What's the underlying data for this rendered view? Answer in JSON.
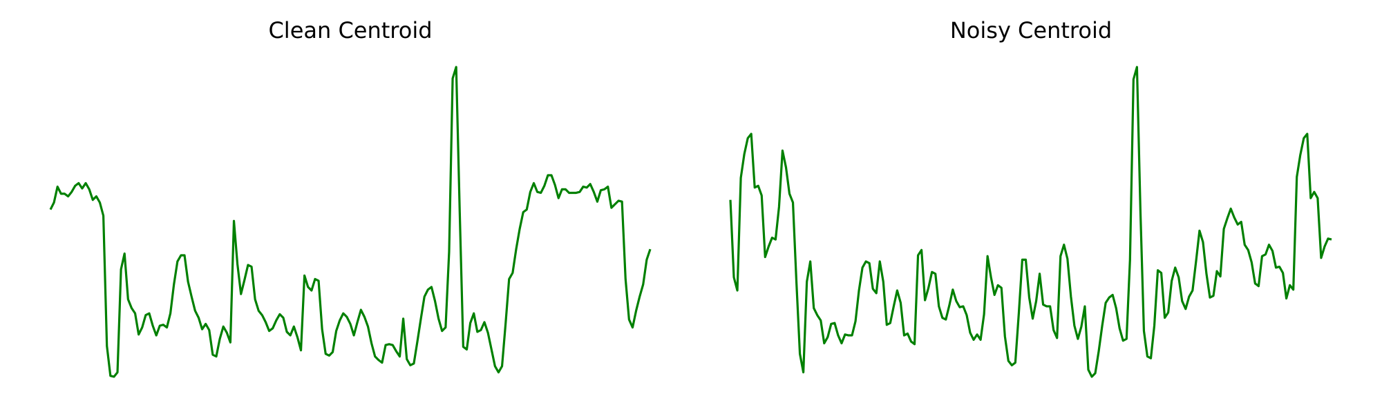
{
  "chart_data": [
    {
      "type": "line",
      "title": "Clean Centroid",
      "color": "#008000",
      "ylim": [
        0,
        400
      ],
      "values": [
        212,
        220,
        238,
        230,
        230,
        227,
        232,
        239,
        242,
        236,
        242,
        235,
        223,
        227,
        220,
        205,
        57,
        23,
        22,
        27,
        144,
        162,
        110,
        100,
        94,
        70,
        78,
        92,
        94,
        80,
        69,
        80,
        81,
        78,
        94,
        127,
        153,
        160,
        160,
        130,
        113,
        97,
        89,
        76,
        82,
        75,
        47,
        45,
        65,
        79,
        72,
        61,
        199,
        150,
        116,
        132,
        149,
        147,
        110,
        97,
        92,
        84,
        74,
        77,
        86,
        93,
        89,
        73,
        69,
        79,
        67,
        52,
        137,
        124,
        120,
        133,
        131,
        76,
        48,
        46,
        50,
        74,
        86,
        94,
        90,
        82,
        69,
        84,
        98,
        90,
        79,
        60,
        45,
        41,
        38,
        58,
        59,
        58,
        51,
        45,
        88,
        42,
        35,
        37,
        62,
        88,
        113,
        121,
        124,
        108,
        88,
        74,
        78,
        164,
        361,
        374,
        210,
        56,
        53,
        83,
        94,
        73,
        75,
        84,
        72,
        53,
        34,
        27,
        34,
        82,
        133,
        140,
        167,
        190,
        209,
        212,
        232,
        242,
        232,
        231,
        239,
        251,
        251,
        240,
        225,
        235,
        235,
        231,
        231,
        231,
        232,
        238,
        237,
        241,
        232,
        221,
        234,
        235,
        238,
        214,
        218,
        222,
        221,
        133,
        87,
        78,
        97,
        113,
        127,
        155,
        167
      ]
    },
    {
      "type": "line",
      "title": "Noisy Centroid",
      "color": "#008000",
      "ylim": [
        0,
        400
      ],
      "values": [
        223,
        135,
        120,
        248,
        275,
        293,
        298,
        237,
        239,
        228,
        158,
        170,
        180,
        178,
        215,
        279,
        260,
        230,
        220,
        130,
        48,
        27,
        130,
        153,
        100,
        92,
        86,
        60,
        67,
        82,
        83,
        69,
        60,
        70,
        69,
        69,
        85,
        120,
        146,
        153,
        151,
        122,
        117,
        153,
        130,
        81,
        83,
        102,
        120,
        106,
        69,
        71,
        62,
        59,
        160,
        166,
        109,
        123,
        141,
        139,
        102,
        89,
        87,
        103,
        121,
        108,
        101,
        102,
        92,
        72,
        64,
        70,
        64,
        93,
        159,
        135,
        115,
        126,
        123,
        68,
        40,
        35,
        38,
        94,
        155,
        155,
        112,
        88,
        108,
        139,
        104,
        102,
        102,
        75,
        66,
        159,
        172,
        156,
        113,
        80,
        65,
        79,
        102,
        30,
        22,
        26,
        51,
        80,
        106,
        112,
        115,
        100,
        77,
        63,
        65,
        155,
        360,
        374,
        210,
        74,
        45,
        43,
        80,
        143,
        140,
        89,
        95,
        131,
        146,
        135,
        108,
        99,
        113,
        120,
        153,
        188,
        175,
        139,
        112,
        114,
        142,
        136,
        190,
        202,
        213,
        203,
        195,
        198,
        172,
        166,
        152,
        128,
        125,
        159,
        161,
        172,
        165,
        146,
        147,
        140,
        111,
        126,
        121,
        249,
        274,
        293,
        298,
        225,
        232,
        225,
        157,
        170,
        179,
        178
      ]
    }
  ]
}
